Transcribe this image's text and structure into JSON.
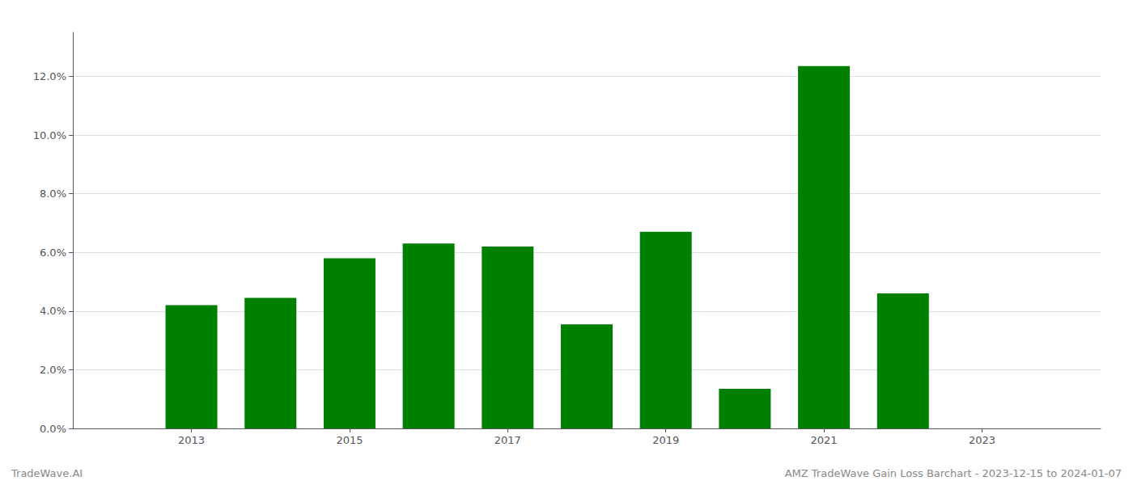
{
  "chart_data": {
    "type": "bar",
    "x": [
      2013,
      2014,
      2015,
      2016,
      2017,
      2018,
      2019,
      2020,
      2021,
      2022,
      2023
    ],
    "values": [
      0.042,
      0.0445,
      0.058,
      0.063,
      0.062,
      0.0355,
      0.067,
      0.0135,
      0.1235,
      0.046,
      0.0
    ],
    "color": "#008000",
    "xlim": [
      2011.5,
      2024.5
    ],
    "xticks": [
      2013,
      2015,
      2017,
      2019,
      2021,
      2023
    ],
    "ylim": [
      0,
      0.135
    ],
    "yticks": [
      {
        "value": 0.0,
        "label": "0.0%"
      },
      {
        "value": 0.02,
        "label": "2.0%"
      },
      {
        "value": 0.04,
        "label": "4.0%"
      },
      {
        "value": 0.06,
        "label": "6.0%"
      },
      {
        "value": 0.08,
        "label": "8.0%"
      },
      {
        "value": 0.1,
        "label": "10.0%"
      },
      {
        "value": 0.12,
        "label": "12.0%"
      }
    ],
    "grid": true,
    "annotations": [
      "TradeWave.AI",
      "AMZ TradeWave Gain Loss Barchart - 2023-12-15 to 2024-01-07"
    ]
  }
}
